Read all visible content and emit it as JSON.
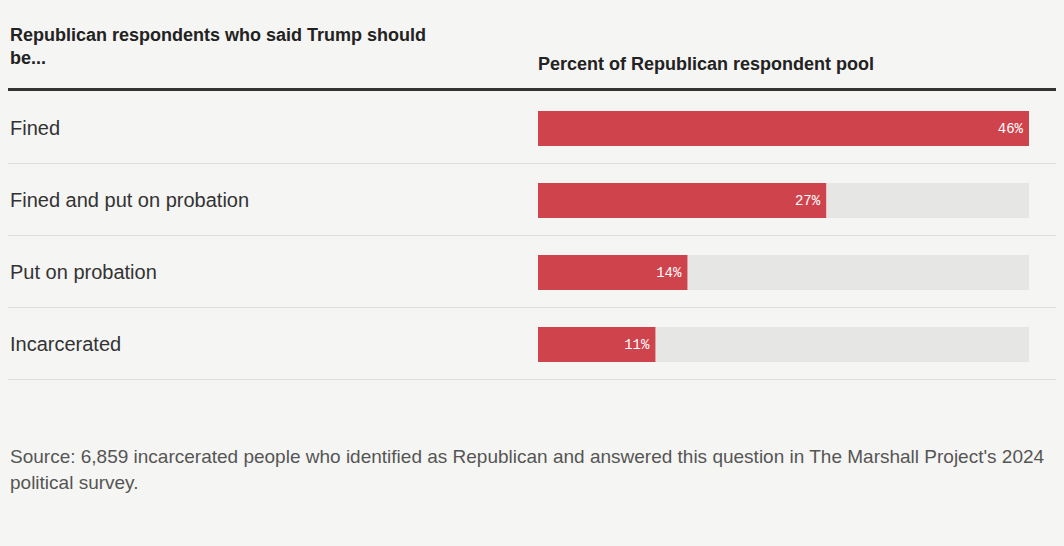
{
  "chart_data": {
    "type": "bar",
    "orientation": "horizontal",
    "title": "Republican respondents who said Trump should be...",
    "x_label": "Percent of Republican respondent pool",
    "source": "Source: 6,859 incarcerated people who identified as Republican and answered this question in The Marshall Project's 2024 political survey.",
    "categories": [
      "Fined",
      "Fined and put on probation",
      "Put on probation",
      "Incarcerated"
    ],
    "values": [
      46,
      27,
      14,
      11
    ],
    "value_labels": [
      "46%",
      "27%",
      "14%",
      "11%"
    ],
    "color": "#cf444c",
    "xlim": [
      0,
      46
    ],
    "data_labels": true,
    "tick_labels": "y",
    "grid": false
  }
}
